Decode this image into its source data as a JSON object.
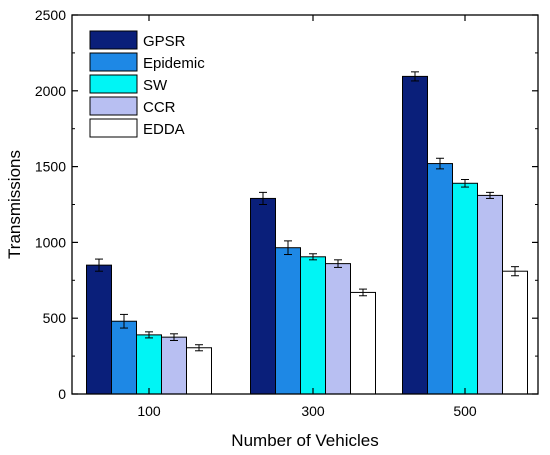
{
  "chart_data": {
    "type": "bar",
    "title": "",
    "xlabel": "Number of Vehicles",
    "ylabel": "Transmissions",
    "categories": [
      "100",
      "300",
      "500"
    ],
    "ylim": [
      0,
      2500
    ],
    "yticks": [
      0,
      500,
      1000,
      1500,
      2000,
      2500
    ],
    "grid": false,
    "legend_position": "top-left",
    "error_bars": true,
    "series": [
      {
        "name": "GPSR",
        "color": "#0a1f7a",
        "values": [
          850,
          1290,
          2095
        ],
        "errors": [
          40,
          40,
          30
        ]
      },
      {
        "name": "Epidemic",
        "color": "#1e88e5",
        "values": [
          480,
          965,
          1520
        ],
        "errors": [
          45,
          45,
          35
        ]
      },
      {
        "name": "SW",
        "color": "#00f5f5",
        "values": [
          390,
          905,
          1390
        ],
        "errors": [
          20,
          20,
          25
        ]
      },
      {
        "name": "CCR",
        "color": "#b8bff2",
        "values": [
          375,
          860,
          1310
        ],
        "errors": [
          22,
          25,
          20
        ]
      },
      {
        "name": "EDDA",
        "color": "#ffffff",
        "values": [
          305,
          670,
          810
        ],
        "errors": [
          20,
          22,
          30
        ]
      }
    ]
  }
}
